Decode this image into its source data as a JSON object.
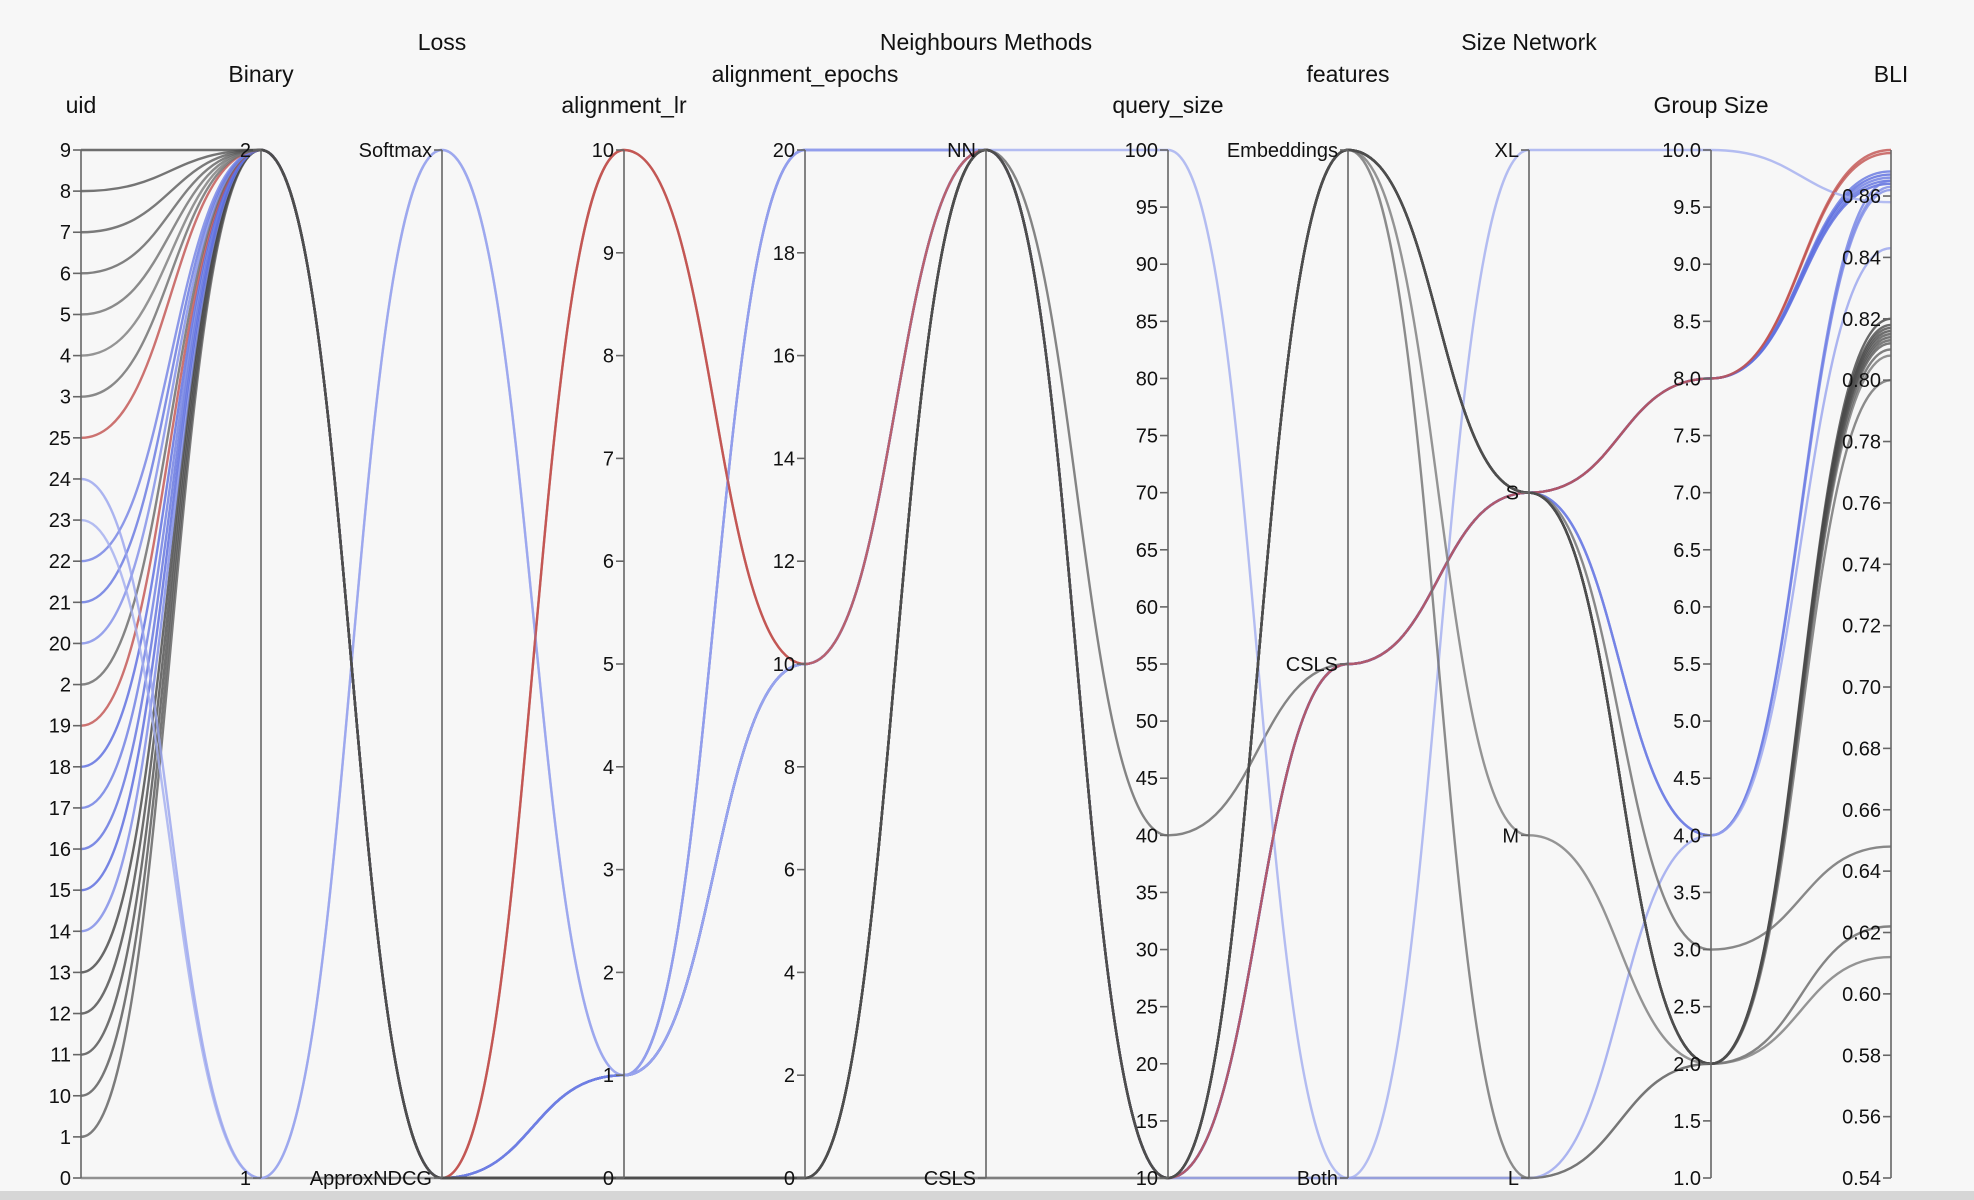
{
  "chart_data": {
    "type": "parallel-coordinates",
    "axes": [
      {
        "name": "uid",
        "label": "uid",
        "kind": "categorical",
        "categories": [
          "0",
          "1",
          "10",
          "11",
          "12",
          "13",
          "14",
          "15",
          "16",
          "17",
          "18",
          "19",
          "2",
          "20",
          "21",
          "22",
          "23",
          "24",
          "25",
          "3",
          "4",
          "5",
          "6",
          "7",
          "8",
          "9"
        ]
      },
      {
        "name": "binary",
        "label": "Binary",
        "kind": "categorical",
        "categories": [
          "1",
          "2"
        ]
      },
      {
        "name": "loss",
        "label": "Loss",
        "kind": "categorical",
        "categories": [
          "ApproxNDCG",
          "Softmax"
        ]
      },
      {
        "name": "alignment_lr",
        "label": "alignment_lr",
        "kind": "numeric",
        "range": [
          0,
          10
        ],
        "ticks": [
          0,
          1,
          2,
          3,
          4,
          5,
          6,
          7,
          8,
          9,
          10
        ]
      },
      {
        "name": "alignment_epochs",
        "label": "alignment_epochs",
        "kind": "numeric",
        "range": [
          0,
          20
        ],
        "ticks": [
          0,
          2,
          4,
          6,
          8,
          10,
          12,
          14,
          16,
          18,
          20
        ]
      },
      {
        "name": "neighbours_methods",
        "label": "Neighbours Methods",
        "kind": "categorical",
        "categories": [
          "CSLS",
          "NN"
        ]
      },
      {
        "name": "query_size",
        "label": "query_size",
        "kind": "numeric",
        "range": [
          10,
          100
        ],
        "ticks": [
          10,
          15,
          20,
          25,
          30,
          35,
          40,
          45,
          50,
          55,
          60,
          65,
          70,
          75,
          80,
          85,
          90,
          95,
          100
        ]
      },
      {
        "name": "features",
        "label": "features",
        "kind": "categorical",
        "categories": [
          "Both",
          "CSLS",
          "Embeddings"
        ]
      },
      {
        "name": "size_network",
        "label": "Size Network",
        "kind": "categorical",
        "categories": [
          "L",
          "M",
          "S",
          "XL"
        ]
      },
      {
        "name": "group_size",
        "label": "Group Size",
        "kind": "numeric",
        "range": [
          1.0,
          10.0
        ],
        "ticks": [
          "1.0",
          "1.5",
          "2.0",
          "2.5",
          "3.0",
          "3.5",
          "4.0",
          "4.5",
          "5.0",
          "5.5",
          "6.0",
          "6.5",
          "7.0",
          "7.5",
          "8.0",
          "8.5",
          "9.0",
          "9.5",
          "10.0"
        ]
      },
      {
        "name": "bli",
        "label": "BLI",
        "kind": "numeric",
        "range": [
          0.54,
          0.875
        ],
        "ticks": [
          "0.54",
          "0.56",
          "0.58",
          "0.60",
          "0.62",
          "0.64",
          "0.66",
          "0.68",
          "0.70",
          "0.72",
          "0.74",
          "0.76",
          "0.78",
          "0.80",
          "0.82",
          "0.84",
          "0.86"
        ]
      }
    ],
    "color_scale": {
      "metric": "BLI",
      "low": "#3a3a3a",
      "mid": "#4f62e0",
      "high": "#c0504d"
    },
    "runs": [
      {
        "uid": "0",
        "binary": "1",
        "loss": "ApproxNDCG",
        "alignment_lr": 0,
        "alignment_epochs": 0,
        "neighbours_methods": "CSLS",
        "query_size": 10,
        "features": "Both",
        "size_network": "L",
        "group_size": 2.0,
        "bli": 0.808,
        "color": "#777777"
      },
      {
        "uid": "1",
        "binary": "2",
        "loss": "ApproxNDCG",
        "alignment_lr": 0,
        "alignment_epochs": 0,
        "neighbours_methods": "NN",
        "query_size": 10,
        "features": "Embeddings",
        "size_network": "S",
        "group_size": 2.0,
        "bli": 0.813,
        "color": "#5c5c5c"
      },
      {
        "uid": "10",
        "binary": "2",
        "loss": "ApproxNDCG",
        "alignment_lr": 0,
        "alignment_epochs": 0,
        "neighbours_methods": "NN",
        "query_size": 10,
        "features": "Embeddings",
        "size_network": "S",
        "group_size": 2.0,
        "bli": 0.815,
        "color": "#555555"
      },
      {
        "uid": "11",
        "binary": "2",
        "loss": "ApproxNDCG",
        "alignment_lr": 0,
        "alignment_epochs": 0,
        "neighbours_methods": "NN",
        "query_size": 10,
        "features": "Embeddings",
        "size_network": "S",
        "group_size": 2.0,
        "bli": 0.817,
        "color": "#4e4e4e"
      },
      {
        "uid": "12",
        "binary": "2",
        "loss": "ApproxNDCG",
        "alignment_lr": 0,
        "alignment_epochs": 0,
        "neighbours_methods": "NN",
        "query_size": 10,
        "features": "Embeddings",
        "size_network": "S",
        "group_size": 2.0,
        "bli": 0.818,
        "color": "#4a4a4a"
      },
      {
        "uid": "13",
        "binary": "2",
        "loss": "ApproxNDCG",
        "alignment_lr": 0,
        "alignment_epochs": 0,
        "neighbours_methods": "NN",
        "query_size": 10,
        "features": "Embeddings",
        "size_network": "S",
        "group_size": 2.0,
        "bli": 0.82,
        "color": "#444444"
      },
      {
        "uid": "14",
        "binary": "2",
        "loss": "ApproxNDCG",
        "alignment_lr": 1,
        "alignment_epochs": 10,
        "neighbours_methods": "NN",
        "query_size": 10,
        "features": "CSLS",
        "size_network": "S",
        "group_size": 4.0,
        "bli": 0.863,
        "color": "#7a88e6"
      },
      {
        "uid": "15",
        "binary": "2",
        "loss": "ApproxNDCG",
        "alignment_lr": 1,
        "alignment_epochs": 10,
        "neighbours_methods": "NN",
        "query_size": 10,
        "features": "CSLS",
        "size_network": "S",
        "group_size": 8.0,
        "bli": 0.864,
        "color": "#5566dd"
      },
      {
        "uid": "16",
        "binary": "2",
        "loss": "ApproxNDCG",
        "alignment_lr": 1,
        "alignment_epochs": 10,
        "neighbours_methods": "NN",
        "query_size": 10,
        "features": "CSLS",
        "size_network": "S",
        "group_size": 8.0,
        "bli": 0.865,
        "color": "#5e6fdf"
      },
      {
        "uid": "17",
        "binary": "2",
        "loss": "ApproxNDCG",
        "alignment_lr": 1,
        "alignment_epochs": 10,
        "neighbours_methods": "NN",
        "query_size": 10,
        "features": "CSLS",
        "size_network": "S",
        "group_size": 8.0,
        "bli": 0.866,
        "color": "#6a7ae2"
      },
      {
        "uid": "18",
        "binary": "2",
        "loss": "ApproxNDCG",
        "alignment_lr": 1,
        "alignment_epochs": 20,
        "neighbours_methods": "NN",
        "query_size": 10,
        "features": "CSLS",
        "size_network": "S",
        "group_size": 8.0,
        "bli": 0.867,
        "color": "#5869de"
      },
      {
        "uid": "19",
        "binary": "2",
        "loss": "ApproxNDCG",
        "alignment_lr": 10,
        "alignment_epochs": 10,
        "neighbours_methods": "NN",
        "query_size": 10,
        "features": "CSLS",
        "size_network": "S",
        "group_size": 8.0,
        "bli": 0.874,
        "color": "#c0504d"
      },
      {
        "uid": "2",
        "binary": "2",
        "loss": "ApproxNDCG",
        "alignment_lr": 0,
        "alignment_epochs": 0,
        "neighbours_methods": "NN",
        "query_size": 40,
        "features": "CSLS",
        "size_network": "S",
        "group_size": 2.0,
        "bli": 0.622,
        "color": "#666666"
      },
      {
        "uid": "20",
        "binary": "2",
        "loss": "ApproxNDCG",
        "alignment_lr": 1,
        "alignment_epochs": 20,
        "neighbours_methods": "NN",
        "query_size": 10,
        "features": "CSLS",
        "size_network": "S",
        "group_size": 4.0,
        "bli": 0.862,
        "color": "#7e8ce7"
      },
      {
        "uid": "21",
        "binary": "2",
        "loss": "ApproxNDCG",
        "alignment_lr": 1,
        "alignment_epochs": 10,
        "neighbours_methods": "NN",
        "query_size": 10,
        "features": "CSLS",
        "size_network": "S",
        "group_size": 8.0,
        "bli": 0.868,
        "color": "#6374e0"
      },
      {
        "uid": "22",
        "binary": "2",
        "loss": "ApproxNDCG",
        "alignment_lr": 1,
        "alignment_epochs": 10,
        "neighbours_methods": "NN",
        "query_size": 10,
        "features": "CSLS",
        "size_network": "S",
        "group_size": 4.0,
        "bli": 0.865,
        "color": "#7080e4"
      },
      {
        "uid": "23",
        "binary": "1",
        "loss": "Softmax",
        "alignment_lr": 1,
        "alignment_epochs": 10,
        "neighbours_methods": "NN",
        "query_size": 100,
        "features": "Both",
        "size_network": "XL",
        "group_size": 10.0,
        "bli": 0.858,
        "color": "#a1acef"
      },
      {
        "uid": "24",
        "binary": "1",
        "loss": "Softmax",
        "alignment_lr": 1,
        "alignment_epochs": 20,
        "neighbours_methods": "NN",
        "query_size": 10,
        "features": "Both",
        "size_network": "L",
        "group_size": 4.0,
        "bli": 0.843,
        "color": "#97a3ee"
      },
      {
        "uid": "25",
        "binary": "2",
        "loss": "ApproxNDCG",
        "alignment_lr": 10,
        "alignment_epochs": 10,
        "neighbours_methods": "NN",
        "query_size": 10,
        "features": "CSLS",
        "size_network": "S",
        "group_size": 8.0,
        "bli": 0.875,
        "color": "#c0504d"
      },
      {
        "uid": "3",
        "binary": "2",
        "loss": "ApproxNDCG",
        "alignment_lr": 0,
        "alignment_epochs": 0,
        "neighbours_methods": "NN",
        "query_size": 10,
        "features": "Embeddings",
        "size_network": "S",
        "group_size": 3.0,
        "bli": 0.648,
        "color": "#6b6b6b"
      },
      {
        "uid": "4",
        "binary": "2",
        "loss": "ApproxNDCG",
        "alignment_lr": 0,
        "alignment_epochs": 0,
        "neighbours_methods": "CSLS",
        "query_size": 10,
        "features": "Embeddings",
        "size_network": "M",
        "group_size": 2.0,
        "bli": 0.612,
        "color": "#7a7a7a"
      },
      {
        "uid": "5",
        "binary": "2",
        "loss": "ApproxNDCG",
        "alignment_lr": 0,
        "alignment_epochs": 0,
        "neighbours_methods": "NN",
        "query_size": 10,
        "features": "Embeddings",
        "size_network": "L",
        "group_size": 2.0,
        "bli": 0.8,
        "color": "#6f6f6f"
      },
      {
        "uid": "6",
        "binary": "2",
        "loss": "ApproxNDCG",
        "alignment_lr": 0,
        "alignment_epochs": 0,
        "neighbours_methods": "NN",
        "query_size": 10,
        "features": "Embeddings",
        "size_network": "S",
        "group_size": 2.0,
        "bli": 0.81,
        "color": "#626262"
      },
      {
        "uid": "7",
        "binary": "2",
        "loss": "ApproxNDCG",
        "alignment_lr": 0,
        "alignment_epochs": 0,
        "neighbours_methods": "NN",
        "query_size": 10,
        "features": "Embeddings",
        "size_network": "S",
        "group_size": 2.0,
        "bli": 0.812,
        "color": "#5a5a5a"
      },
      {
        "uid": "8",
        "binary": "2",
        "loss": "ApproxNDCG",
        "alignment_lr": 0,
        "alignment_epochs": 0,
        "neighbours_methods": "NN",
        "query_size": 10,
        "features": "Embeddings",
        "size_network": "S",
        "group_size": 2.0,
        "bli": 0.814,
        "color": "#525252"
      },
      {
        "uid": "9",
        "binary": "2",
        "loss": "ApproxNDCG",
        "alignment_lr": 0,
        "alignment_epochs": 0,
        "neighbours_methods": "NN",
        "query_size": 10,
        "features": "Embeddings",
        "size_network": "S",
        "group_size": 2.0,
        "bli": 0.816,
        "color": "#4b4b4b"
      }
    ]
  }
}
